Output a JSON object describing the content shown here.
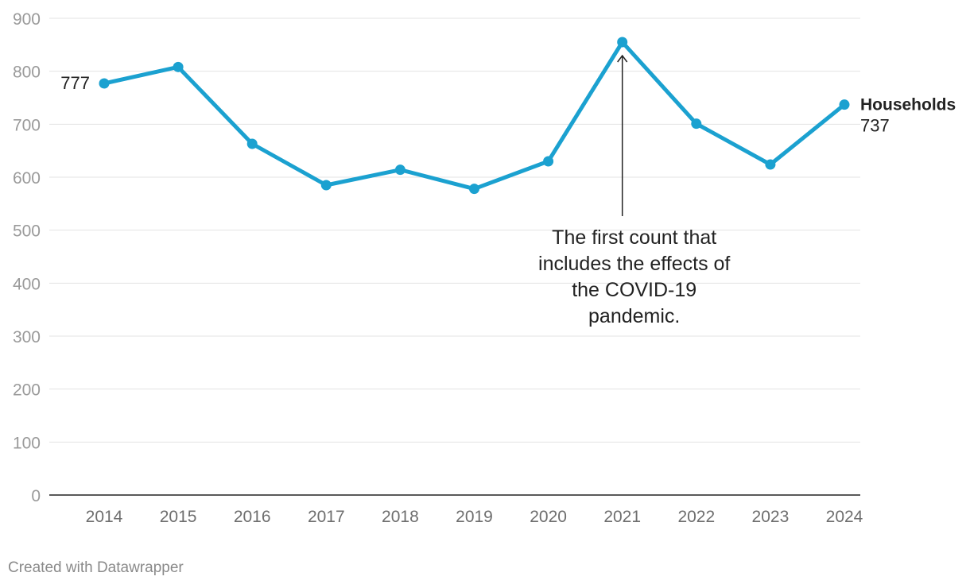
{
  "chart_data": {
    "type": "line",
    "title": "",
    "xlabel": "",
    "ylabel": "",
    "ylim": [
      0,
      900
    ],
    "yticks": [
      0,
      100,
      200,
      300,
      400,
      500,
      600,
      700,
      800,
      900
    ],
    "grid": true,
    "categories": [
      "2014",
      "2015",
      "2016",
      "2017",
      "2018",
      "2019",
      "2020",
      "2021",
      "2022",
      "2023",
      "2024"
    ],
    "series": [
      {
        "name": "Households",
        "color": "#1ba1d0",
        "values": [
          777,
          808,
          663,
          585,
          614,
          578,
          630,
          855,
          701,
          624,
          737
        ]
      }
    ],
    "start_label": "777",
    "end_label": {
      "name": "Households",
      "value": "737"
    },
    "annotation": {
      "category": "2021",
      "lines": [
        "The first count that",
        "includes the effects of",
        "the COVID-19",
        "pandemic."
      ]
    }
  },
  "footer": {
    "credit": "Created with Datawrapper"
  }
}
